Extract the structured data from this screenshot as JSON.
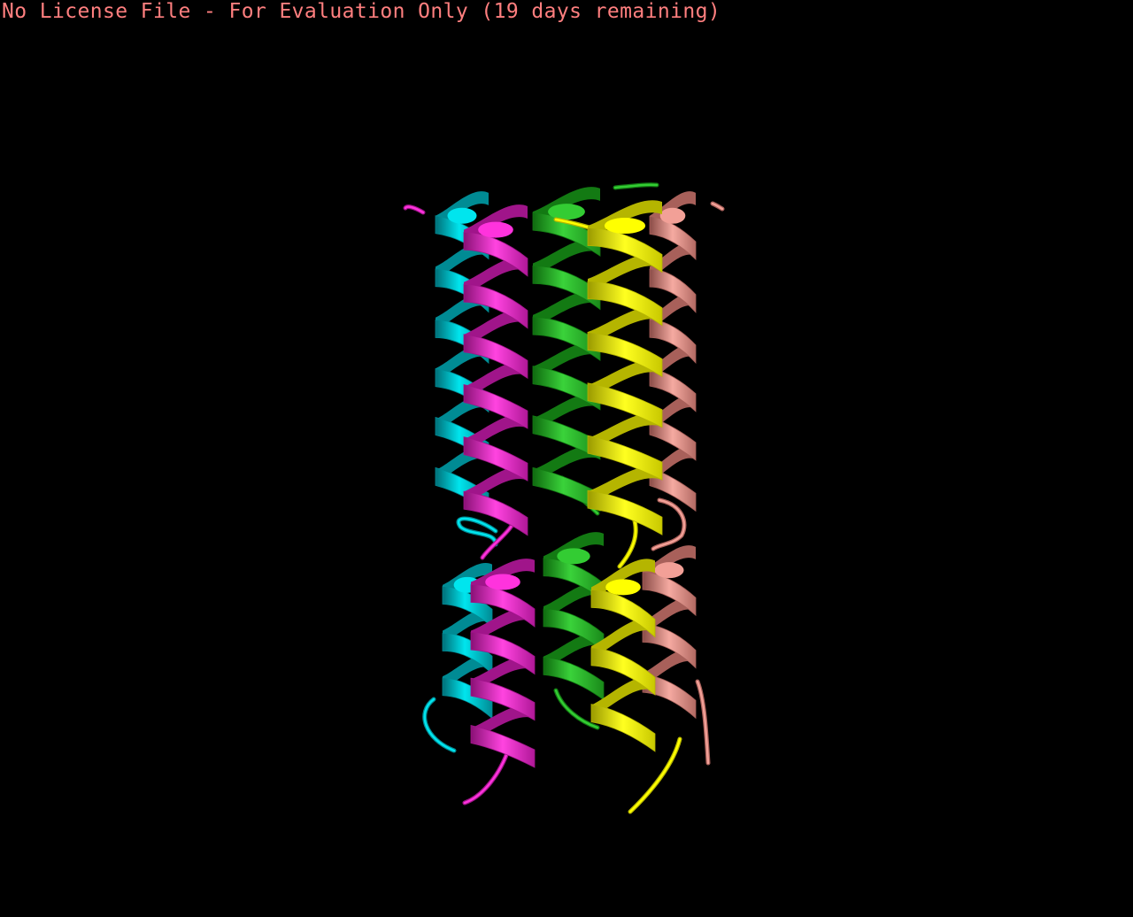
{
  "viewer": {
    "license_banner": "No License File - For Evaluation Only (19 days remaining)",
    "banner_color": "#ff7f7f",
    "background_color": "#000000"
  },
  "molecule": {
    "representation": "cartoon",
    "chains": [
      {
        "id": "cyan",
        "color": "#00e5ee",
        "shade": "#008b94"
      },
      {
        "id": "magenta",
        "color": "#ff33dd",
        "shade": "#a0158a"
      },
      {
        "id": "green",
        "color": "#33cc33",
        "shade": "#137a13"
      },
      {
        "id": "yellow",
        "color": "#ffff00",
        "shade": "#b5b500"
      },
      {
        "id": "salmon",
        "color": "#f2a097",
        "shade": "#a8605a"
      }
    ]
  }
}
